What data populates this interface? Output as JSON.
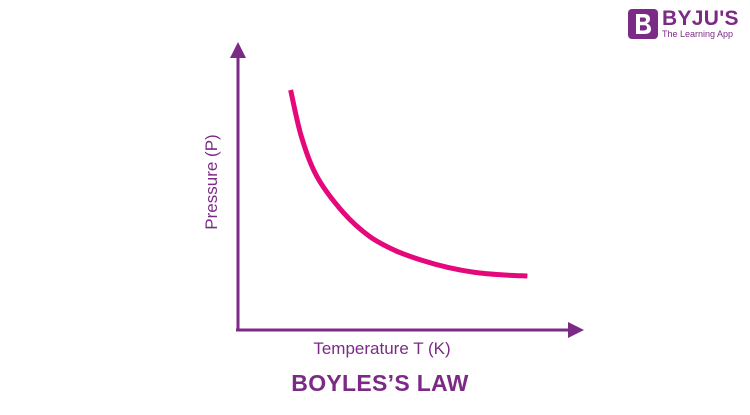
{
  "logo": {
    "name": "BYJU'S",
    "tagline": "The Learning App",
    "mark_letter": "B"
  },
  "chart_data": {
    "type": "line",
    "title": "BOYLES’S LAW",
    "xlabel": "Temperature T (K)",
    "ylabel": "Pressure (P)",
    "series": [
      {
        "color": "#e5087b",
        "points": [
          [
            1,
            10
          ],
          [
            1.2,
            8.1
          ],
          [
            1.5,
            6.4
          ],
          [
            2,
            4.9
          ],
          [
            2.5,
            3.9
          ],
          [
            3,
            3.3
          ],
          [
            3.5,
            2.9
          ],
          [
            4,
            2.6
          ],
          [
            4.5,
            2.4
          ],
          [
            5,
            2.3
          ],
          [
            5.5,
            2.25
          ]
        ]
      }
    ],
    "xlim": [
      0,
      6.5
    ],
    "ylim": [
      0,
      12
    ],
    "grid": false,
    "legend": "none"
  },
  "colors": {
    "axis": "#7b2b85",
    "curve": "#e5087b",
    "text": "#7b2b85"
  }
}
